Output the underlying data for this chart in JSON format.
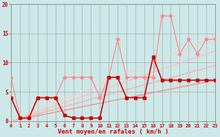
{
  "xlabel": "Vent moyen/en rafales ( km/h )",
  "bg_color": "#cce8e8",
  "grid_color": "#aaaaaa",
  "ylim": [
    0,
    20
  ],
  "xlim": [
    0,
    23
  ],
  "series_lines": [
    {
      "x": [
        0,
        23
      ],
      "y": [
        0,
        7.0
      ],
      "color": "#ff8888",
      "linewidth": 1.0
    },
    {
      "x": [
        0,
        23
      ],
      "y": [
        0,
        9.5
      ],
      "color": "#ffaaaa",
      "linewidth": 1.0
    },
    {
      "x": [
        0,
        23
      ],
      "y": [
        0,
        12.0
      ],
      "color": "#ffbbbb",
      "linewidth": 1.0
    },
    {
      "x": [
        0,
        23
      ],
      "y": [
        0,
        14.5
      ],
      "color": "#ffcccc",
      "linewidth": 1.0
    }
  ],
  "series_marked_light": {
    "x": [
      0,
      1,
      2,
      3,
      4,
      5,
      6,
      7,
      8,
      9,
      10,
      11,
      12,
      13,
      14,
      15,
      16,
      17,
      18,
      19,
      20,
      21,
      22,
      23
    ],
    "y": [
      7.5,
      0.5,
      0.5,
      4,
      4,
      4,
      7.5,
      7.5,
      7.5,
      7.5,
      4,
      7.5,
      14,
      7.5,
      7.5,
      7.5,
      7.5,
      18,
      18,
      11.5,
      14,
      11.5,
      14,
      14
    ],
    "color": "#ff8888",
    "linewidth": 0.9,
    "markersize": 2.5
  },
  "series_marked_dark": {
    "x": [
      0,
      1,
      2,
      3,
      4,
      5,
      6,
      7,
      8,
      9,
      10,
      11,
      12,
      13,
      14,
      15,
      16,
      17,
      18,
      19,
      20,
      21,
      22,
      23
    ],
    "y": [
      4,
      0.5,
      0.5,
      4,
      4,
      4,
      1,
      0.5,
      0.5,
      0.5,
      0.5,
      7.5,
      7.5,
      4,
      4,
      4,
      11,
      7,
      7,
      7,
      7,
      7,
      7,
      7
    ],
    "color": "#cc0000",
    "linewidth": 1.2,
    "markersize": 2.5
  },
  "tick_color": "#cc0000",
  "tick_fontsize": 5.0,
  "xlabel_fontsize": 6.5,
  "yticks": [
    0,
    5,
    10,
    15,
    20
  ],
  "xticks": [
    0,
    1,
    2,
    3,
    4,
    5,
    6,
    7,
    8,
    9,
    10,
    11,
    12,
    13,
    14,
    15,
    16,
    17,
    18,
    19,
    20,
    21,
    22,
    23
  ]
}
